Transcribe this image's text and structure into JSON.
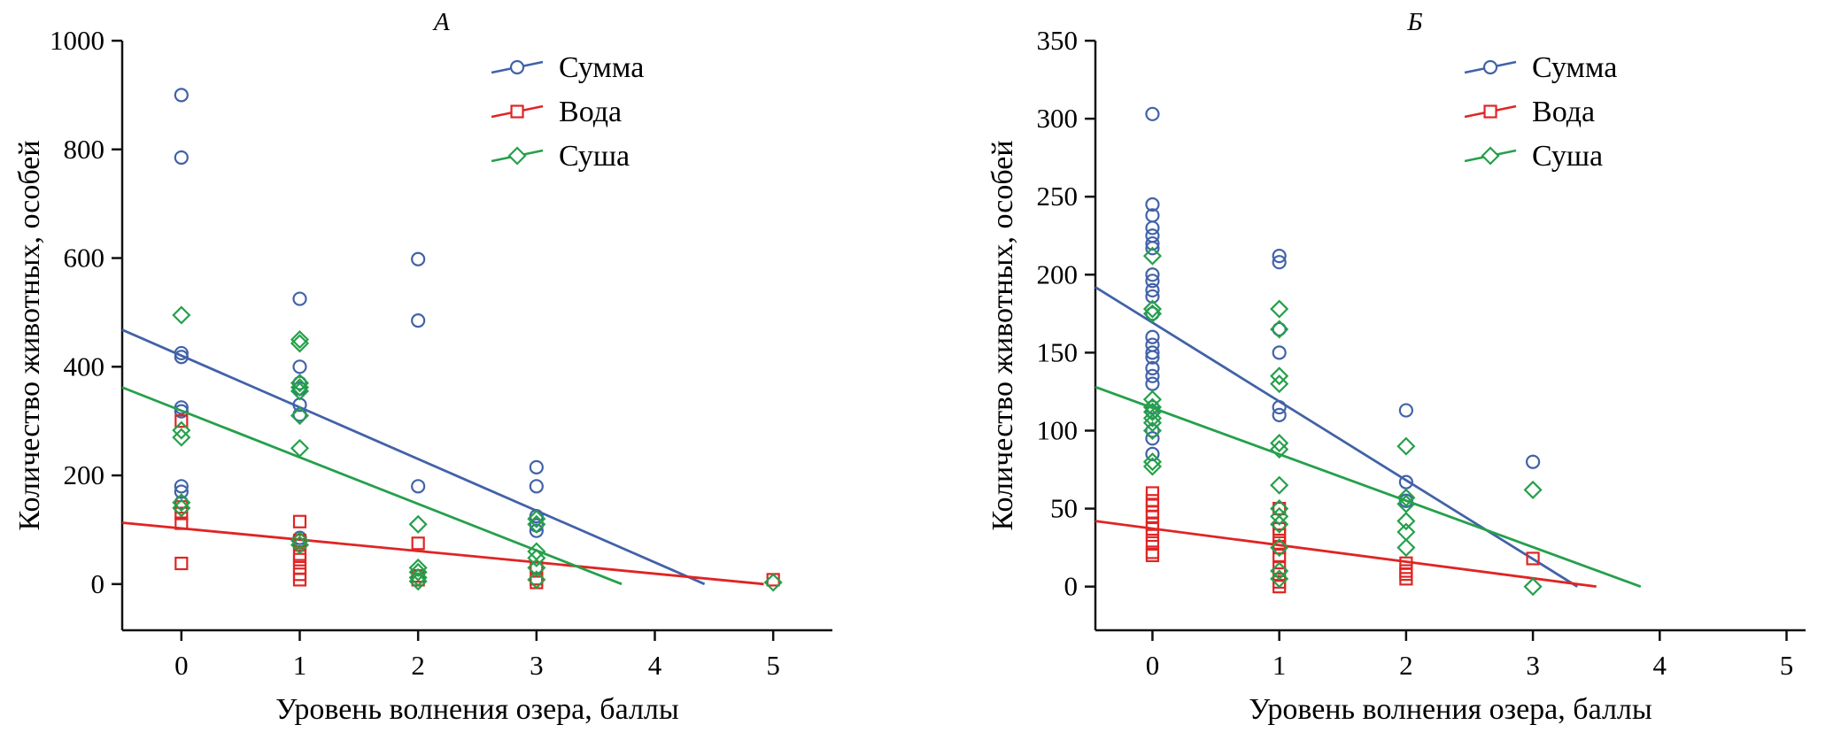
{
  "page": {
    "background": "#ffffff"
  },
  "chart_data": [
    {
      "id": "A",
      "type": "scatter",
      "title": "А",
      "xlabel": "Уровень волнения озера, баллы",
      "ylabel": "Количество животных, особей",
      "xlim": [
        -0.5,
        5.5
      ],
      "ylim": [
        -85,
        1000
      ],
      "xticks": [
        0,
        1,
        2,
        3,
        4,
        5
      ],
      "yticks": [
        0,
        200,
        400,
        600,
        800,
        1000
      ],
      "legend_position": "top-right",
      "legend_x": 0.52,
      "legend_y": 30,
      "title_x": 0.45,
      "series": [
        {
          "name": "Сумма",
          "marker": "circle",
          "color": "#4262a8",
          "points": [
            [
              0,
              900
            ],
            [
              0,
              785
            ],
            [
              0,
              425
            ],
            [
              0,
              418
            ],
            [
              0,
              325
            ],
            [
              0,
              318
            ],
            [
              0,
              180
            ],
            [
              0,
              170
            ],
            [
              0,
              150
            ],
            [
              1,
              525
            ],
            [
              1,
              400
            ],
            [
              1,
              370
            ],
            [
              1,
              360
            ],
            [
              1,
              330
            ],
            [
              1,
              312
            ],
            [
              1,
              85
            ],
            [
              2,
              598
            ],
            [
              2,
              485
            ],
            [
              2,
              180
            ],
            [
              3,
              215
            ],
            [
              3,
              180
            ],
            [
              3,
              125
            ],
            [
              3,
              108
            ],
            [
              3,
              98
            ]
          ],
          "trend": {
            "x1": -0.5,
            "y1": 468,
            "x2": 4.42,
            "y2": 0
          }
        },
        {
          "name": "Вода",
          "marker": "square",
          "color": "#e02424",
          "points": [
            [
              0,
              300
            ],
            [
              0,
              142
            ],
            [
              0,
              130
            ],
            [
              0,
              112
            ],
            [
              0,
              38
            ],
            [
              1,
              115
            ],
            [
              1,
              80
            ],
            [
              1,
              72
            ],
            [
              1,
              55
            ],
            [
              1,
              45
            ],
            [
              1,
              30
            ],
            [
              1,
              18
            ],
            [
              1,
              8
            ],
            [
              2,
              75
            ],
            [
              2,
              15
            ],
            [
              2,
              8
            ],
            [
              3,
              30
            ],
            [
              3,
              10
            ],
            [
              3,
              3
            ],
            [
              5,
              8
            ]
          ],
          "trend": {
            "x1": -0.5,
            "y1": 113,
            "x2": 4.92,
            "y2": 0
          }
        },
        {
          "name": "Суша",
          "marker": "diamond",
          "color": "#25a04b",
          "points": [
            [
              0,
              495
            ],
            [
              0,
              283
            ],
            [
              0,
              270
            ],
            [
              0,
              150
            ],
            [
              0,
              140
            ],
            [
              1,
              450
            ],
            [
              1,
              443
            ],
            [
              1,
              370
            ],
            [
              1,
              362
            ],
            [
              1,
              355
            ],
            [
              1,
              310
            ],
            [
              1,
              250
            ],
            [
              1,
              80
            ],
            [
              1,
              72
            ],
            [
              2,
              110
            ],
            [
              2,
              30
            ],
            [
              2,
              22
            ],
            [
              2,
              12
            ],
            [
              2,
              5
            ],
            [
              3,
              120
            ],
            [
              3,
              110
            ],
            [
              3,
              60
            ],
            [
              3,
              48
            ],
            [
              3,
              30
            ],
            [
              3,
              8
            ],
            [
              5,
              3
            ]
          ],
          "trend": {
            "x1": -0.5,
            "y1": 362,
            "x2": 3.72,
            "y2": 0
          }
        }
      ]
    },
    {
      "id": "Б",
      "type": "scatter",
      "title": "Б",
      "xlabel": "Уровень волнения озера, баллы",
      "ylabel": "Количество животных, особей",
      "xlim": [
        -0.45,
        5.15
      ],
      "ylim": [
        -28,
        350
      ],
      "xticks": [
        0,
        1,
        2,
        3,
        4,
        5
      ],
      "yticks": [
        0,
        50,
        100,
        150,
        200,
        250,
        300,
        350
      ],
      "legend_position": "top-right",
      "legend_x": 0.52,
      "legend_y": 30,
      "title_x": 0.45,
      "series": [
        {
          "name": "Сумма",
          "marker": "circle",
          "color": "#4262a8",
          "points": [
            [
              0,
              303
            ],
            [
              0,
              245
            ],
            [
              0,
              238
            ],
            [
              0,
              230
            ],
            [
              0,
              225
            ],
            [
              0,
              220
            ],
            [
              0,
              217
            ],
            [
              0,
              200
            ],
            [
              0,
              196
            ],
            [
              0,
              190
            ],
            [
              0,
              186
            ],
            [
              0,
              175
            ],
            [
              0,
              160
            ],
            [
              0,
              155
            ],
            [
              0,
              150
            ],
            [
              0,
              147
            ],
            [
              0,
              140
            ],
            [
              0,
              135
            ],
            [
              0,
              130
            ],
            [
              0,
              115
            ],
            [
              0,
              112
            ],
            [
              0,
              100
            ],
            [
              0,
              95
            ],
            [
              0,
              85
            ],
            [
              1,
              212
            ],
            [
              1,
              208
            ],
            [
              1,
              165
            ],
            [
              1,
              150
            ],
            [
              1,
              115
            ],
            [
              1,
              110
            ],
            [
              2,
              113
            ],
            [
              2,
              67
            ],
            [
              2,
              55
            ],
            [
              3,
              80
            ]
          ],
          "trend": {
            "x1": -0.45,
            "y1": 192,
            "x2": 3.35,
            "y2": 0
          }
        },
        {
          "name": "Вода",
          "marker": "square",
          "color": "#e02424",
          "points": [
            [
              0,
              60
            ],
            [
              0,
              55
            ],
            [
              0,
              52
            ],
            [
              0,
              48
            ],
            [
              0,
              45
            ],
            [
              0,
              40
            ],
            [
              0,
              37
            ],
            [
              0,
              33
            ],
            [
              0,
              28
            ],
            [
              0,
              22
            ],
            [
              0,
              20
            ],
            [
              1,
              50
            ],
            [
              1,
              37
            ],
            [
              1,
              33
            ],
            [
              1,
              28
            ],
            [
              1,
              25
            ],
            [
              1,
              20
            ],
            [
              1,
              12
            ],
            [
              1,
              8
            ],
            [
              1,
              3
            ],
            [
              1,
              0
            ],
            [
              2,
              15
            ],
            [
              2,
              10
            ],
            [
              2,
              8
            ],
            [
              2,
              5
            ],
            [
              3,
              18
            ]
          ],
          "trend": {
            "x1": -0.45,
            "y1": 42,
            "x2": 3.5,
            "y2": 0
          }
        },
        {
          "name": "Суша",
          "marker": "diamond",
          "color": "#25a04b",
          "points": [
            [
              0,
              212
            ],
            [
              0,
              178
            ],
            [
              0,
              175
            ],
            [
              0,
              120
            ],
            [
              0,
              115
            ],
            [
              0,
              112
            ],
            [
              0,
              108
            ],
            [
              0,
              105
            ],
            [
              0,
              100
            ],
            [
              0,
              80
            ],
            [
              0,
              77
            ],
            [
              1,
              178
            ],
            [
              1,
              165
            ],
            [
              1,
              135
            ],
            [
              1,
              130
            ],
            [
              1,
              92
            ],
            [
              1,
              88
            ],
            [
              1,
              65
            ],
            [
              1,
              50
            ],
            [
              1,
              45
            ],
            [
              1,
              40
            ],
            [
              1,
              25
            ],
            [
              1,
              10
            ],
            [
              1,
              5
            ],
            [
              2,
              90
            ],
            [
              2,
              57
            ],
            [
              2,
              53
            ],
            [
              2,
              42
            ],
            [
              2,
              35
            ],
            [
              2,
              25
            ],
            [
              3,
              62
            ],
            [
              3,
              0
            ]
          ],
          "trend": {
            "x1": -0.45,
            "y1": 128,
            "x2": 3.85,
            "y2": 0
          }
        }
      ]
    }
  ]
}
